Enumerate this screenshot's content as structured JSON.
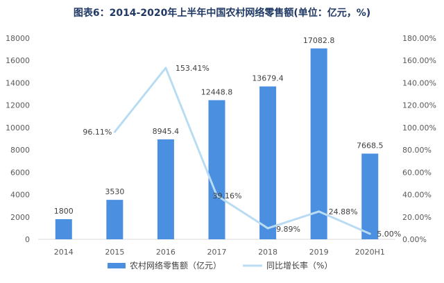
{
  "chart_data": {
    "type": "bar",
    "title": "图表6：2014-2020年上半年中国农村网络零售额(单位：亿元，%)",
    "categories": [
      "2014",
      "2015",
      "2016",
      "2017",
      "2018",
      "2019",
      "2020H1"
    ],
    "series": [
      {
        "name": "农村网络零售额（亿元）",
        "type": "bar",
        "axis": "left",
        "color": "#4a8fe0",
        "values": [
          1800,
          3530,
          8945.4,
          12448.8,
          13679.4,
          17082.8,
          7668.5
        ],
        "labels": [
          "1800",
          "3530",
          "8945.4",
          "12448.8",
          "13679.4",
          "17082.8",
          "7668.5"
        ]
      },
      {
        "name": "同比增长率（%）",
        "type": "line",
        "axis": "right",
        "color": "#b9dcf3",
        "values": [
          null,
          96.11,
          153.41,
          39.16,
          9.89,
          24.88,
          5.0
        ],
        "labels": [
          "",
          "96.11%",
          "153.41%",
          "39.16%",
          "9.89%",
          "24.88%",
          "5.00%"
        ]
      }
    ],
    "y_left": {
      "ylim": [
        0,
        18000
      ],
      "ticks": [
        "0",
        "2000",
        "4000",
        "6000",
        "8000",
        "10000",
        "12000",
        "14000",
        "16000",
        "18000"
      ]
    },
    "y_right": {
      "ylim": [
        0,
        180
      ],
      "ticks": [
        "0.00%",
        "20.00%",
        "40.00%",
        "60.00%",
        "80.00%",
        "100.00%",
        "120.00%",
        "140.00%",
        "160.00%",
        "180.00%"
      ]
    },
    "grid": false,
    "legend": "bottom"
  }
}
